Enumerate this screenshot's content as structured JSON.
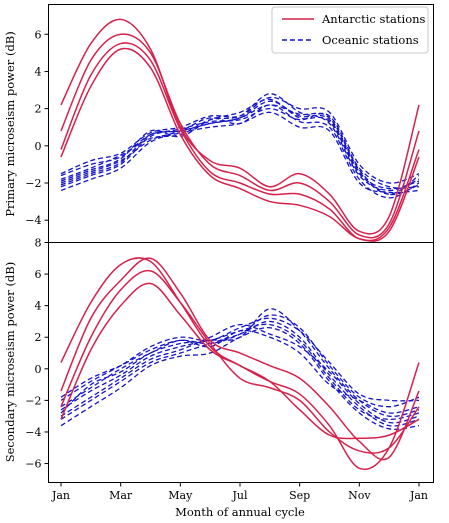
{
  "chart_data": {
    "type": "line",
    "xlabel": "Month of annual cycle",
    "x_ticks": [
      "Jan",
      "Mar",
      "May",
      "Jul",
      "Sep",
      "Nov",
      "Jan"
    ],
    "xlim": [
      0,
      12
    ],
    "legend": {
      "placement": "top-right",
      "entries": [
        {
          "label": "Antarctic stations",
          "style": "solid",
          "color": "#d6214b"
        },
        {
          "label": "Oceanic stations",
          "style": "dashed",
          "color": "#1515c8"
        }
      ]
    },
    "colors": {
      "antarctic": "#d6214b",
      "oceanic": "#1515c8"
    },
    "panels": [
      {
        "ylabel": "Primary microseism power (dB)",
        "ylim": [
          -5.2,
          7.6
        ],
        "y_ticks": [
          -4,
          -2,
          0,
          2,
          4,
          6
        ],
        "x": [
          0,
          1,
          2,
          3,
          4,
          5,
          6,
          7,
          8,
          9,
          10,
          11,
          12
        ],
        "antarctic": [
          [
            2.2,
            5.5,
            6.8,
            5.2,
            1.0,
            -0.8,
            -1.2,
            -2.2,
            -1.5,
            -2.6,
            -4.6,
            -3.8,
            2.2
          ],
          [
            0.8,
            4.6,
            6.0,
            5.0,
            1.2,
            -1.0,
            -1.6,
            -2.4,
            -2.0,
            -3.0,
            -4.8,
            -4.2,
            0.8
          ],
          [
            -0.2,
            3.8,
            5.5,
            4.6,
            0.9,
            -1.4,
            -2.0,
            -2.6,
            -2.6,
            -3.4,
            -5.0,
            -4.4,
            -0.2
          ],
          [
            -0.6,
            3.2,
            5.2,
            4.2,
            0.6,
            -1.6,
            -2.3,
            -3.0,
            -3.2,
            -3.8,
            -5.0,
            -4.6,
            -0.6
          ]
        ],
        "oceanic": [
          [
            -1.6,
            -1.0,
            -0.6,
            0.6,
            0.8,
            1.2,
            1.5,
            2.4,
            1.6,
            1.4,
            -1.4,
            -2.6,
            -1.6
          ],
          [
            -1.8,
            -1.2,
            -0.5,
            0.4,
            0.6,
            1.4,
            1.6,
            2.8,
            1.8,
            1.2,
            -1.6,
            -2.4,
            -1.8
          ],
          [
            -2.0,
            -1.4,
            -0.8,
            0.3,
            0.8,
            1.5,
            1.2,
            2.2,
            1.3,
            1.0,
            -1.8,
            -2.8,
            -2.0
          ],
          [
            -2.2,
            -1.6,
            -1.0,
            0.5,
            0.9,
            1.3,
            1.4,
            2.0,
            1.4,
            1.6,
            -1.2,
            -2.2,
            -2.2
          ],
          [
            -1.5,
            -0.8,
            -0.4,
            0.7,
            1.0,
            1.6,
            1.6,
            2.6,
            2.0,
            1.8,
            -1.0,
            -2.0,
            -1.5
          ],
          [
            -2.4,
            -1.8,
            -1.2,
            0.2,
            0.7,
            1.0,
            1.2,
            1.8,
            1.0,
            0.8,
            -2.0,
            -2.5,
            -2.4
          ],
          [
            -1.9,
            -1.3,
            -0.7,
            0.8,
            0.5,
            1.4,
            1.8,
            2.5,
            1.5,
            1.3,
            -1.5,
            -2.3,
            -1.9
          ],
          [
            -2.1,
            -1.5,
            -0.9,
            0.6,
            0.8,
            1.2,
            1.5,
            2.2,
            1.7,
            1.5,
            -1.3,
            -2.6,
            -2.1
          ]
        ]
      },
      {
        "ylabel": "Secondary microseism power (dB)",
        "ylim": [
          -7.2,
          8.0
        ],
        "y_ticks": [
          -6,
          -4,
          -2,
          0,
          2,
          4,
          6,
          8
        ],
        "x": [
          0,
          1,
          2,
          3,
          4,
          5,
          6,
          7,
          8,
          9,
          10,
          11,
          12
        ],
        "antarctic": [
          [
            0.4,
            4.2,
            6.6,
            6.8,
            4.2,
            1.4,
            0.2,
            -0.8,
            -1.6,
            -3.6,
            -6.3,
            -5.0,
            0.4
          ],
          [
            -1.4,
            3.2,
            5.6,
            7.0,
            4.8,
            1.8,
            1.0,
            0.2,
            -0.6,
            -2.4,
            -4.6,
            -5.6,
            -1.4
          ],
          [
            -2.4,
            2.0,
            5.0,
            6.2,
            4.2,
            1.6,
            -0.6,
            -1.2,
            -2.0,
            -4.0,
            -5.2,
            -5.0,
            -2.4
          ],
          [
            -3.2,
            1.2,
            4.0,
            5.4,
            3.4,
            1.2,
            0.2,
            -0.8,
            -2.6,
            -4.2,
            -4.4,
            -4.2,
            -3.2
          ]
        ],
        "oceanic": [
          [
            -1.8,
            -0.6,
            0.2,
            1.2,
            1.8,
            1.6,
            2.2,
            3.4,
            2.6,
            0.2,
            -1.8,
            -2.4,
            -1.8
          ],
          [
            -2.6,
            -1.4,
            -0.4,
            0.8,
            1.4,
            1.8,
            2.0,
            3.8,
            2.4,
            0.0,
            -2.0,
            -3.0,
            -2.6
          ],
          [
            -3.2,
            -2.0,
            -0.8,
            0.4,
            1.0,
            1.6,
            2.2,
            3.0,
            2.0,
            -0.4,
            -2.4,
            -3.6,
            -3.2
          ],
          [
            -2.8,
            -1.0,
            -0.2,
            1.0,
            1.6,
            1.8,
            2.4,
            2.8,
            1.8,
            -0.6,
            -2.6,
            -3.2,
            -2.8
          ],
          [
            -2.0,
            -0.8,
            0.2,
            1.4,
            2.0,
            1.8,
            2.6,
            3.2,
            2.4,
            0.4,
            -1.6,
            -2.0,
            -2.0
          ],
          [
            -3.6,
            -2.4,
            -1.2,
            0.2,
            0.8,
            1.0,
            2.0,
            2.6,
            1.6,
            -0.8,
            -2.8,
            -3.8,
            -3.6
          ],
          [
            -3.0,
            -1.8,
            -0.6,
            0.6,
            1.2,
            2.0,
            2.8,
            2.2,
            1.4,
            -0.2,
            -2.2,
            -3.4,
            -3.0
          ],
          [
            -2.4,
            -1.2,
            0.0,
            1.0,
            1.8,
            1.4,
            2.4,
            2.0,
            1.0,
            -1.0,
            -2.0,
            -2.8,
            -2.4
          ]
        ]
      }
    ]
  }
}
